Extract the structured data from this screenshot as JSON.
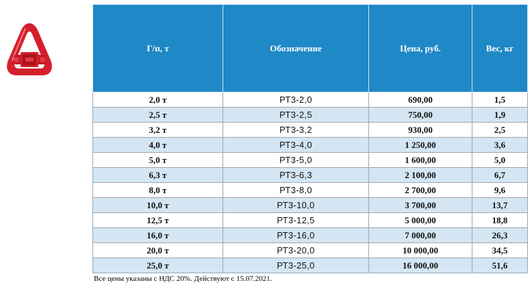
{
  "logo": {
    "icon": "red-rigging-link-icon",
    "color": "#d4202c"
  },
  "table": {
    "header_color": "#1f88c6",
    "stripe_color": "#d4e6f3",
    "headers": [
      "Г/п, т",
      "Обозначение",
      "Цена, руб.",
      "Вес, кг"
    ],
    "rows": [
      [
        "2,0 т",
        "РТ3-2,0",
        "690,00",
        "1,5"
      ],
      [
        "2,5 т",
        "РТ3-2,5",
        "750,00",
        "1,9"
      ],
      [
        "3,2 т",
        "РТ3-3,2",
        "930,00",
        "2,5"
      ],
      [
        "4,0 т",
        "РТ3-4,0",
        "1 250,00",
        "3,6"
      ],
      [
        "5,0 т",
        "РТ3-5,0",
        "1 600,00",
        "5,0"
      ],
      [
        "6,3 т",
        "РТ3-6,3",
        "2 100,00",
        "6,7"
      ],
      [
        "8,0 т",
        "РТ3-8,0",
        "2 700,00",
        "9,6"
      ],
      [
        "10,0 т",
        "РТ3-10,0",
        "3 700,00",
        "13,7"
      ],
      [
        "12,5 т",
        "РТ3-12,5",
        "5 000,00",
        "18,8"
      ],
      [
        "16,0 т",
        "РТ3-16,0",
        "7 000,00",
        "26,3"
      ],
      [
        "20,0 т",
        "РТ3-20,0",
        "10 000,00",
        "34,5"
      ],
      [
        "25,0 т",
        "РТ3-25,0",
        "16 000,00",
        "51,6"
      ]
    ]
  },
  "footnote": "Все цены указаны с НДС 20%. Действуют с 15.07.2021."
}
